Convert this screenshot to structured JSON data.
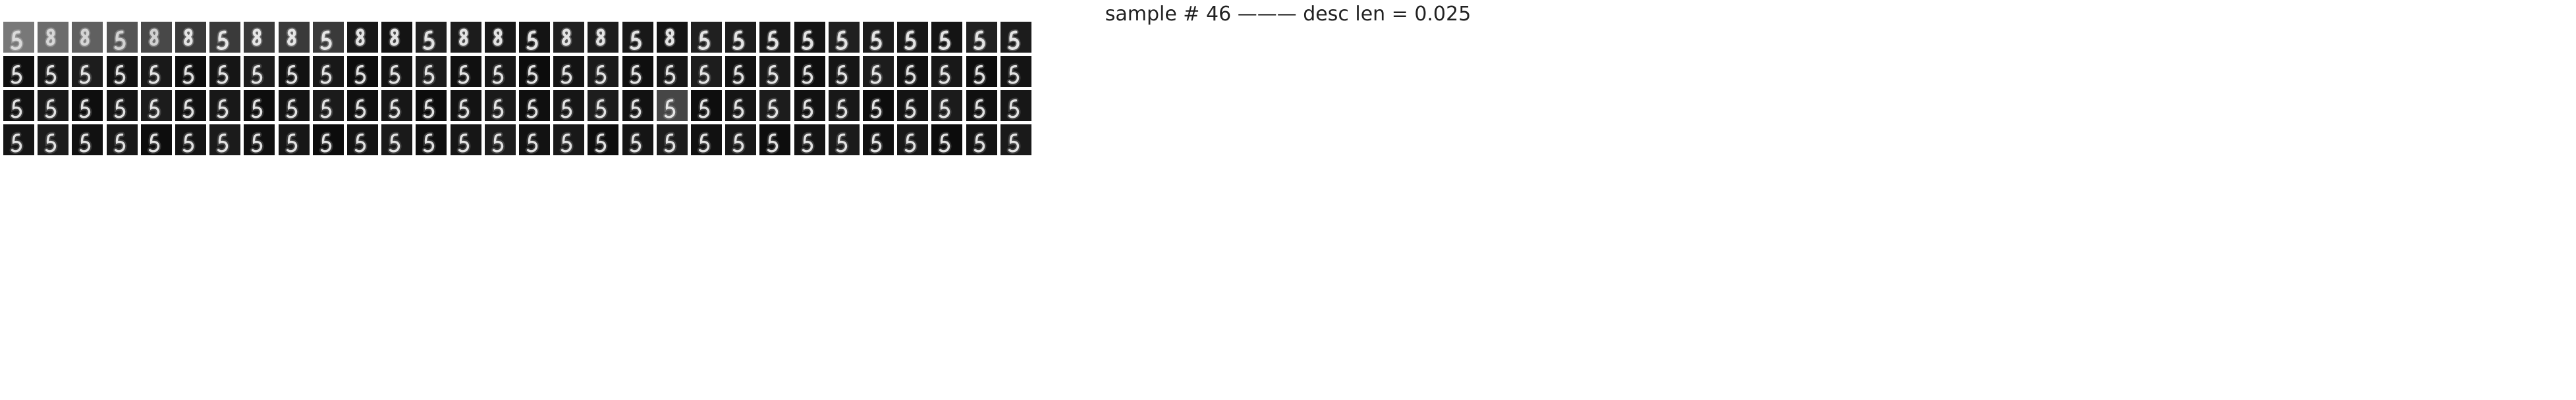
{
  "figure": {
    "title": "sample # 46 ——— desc len = 0.025",
    "rows": 4,
    "cols": 30,
    "tile_background": "#101010",
    "stroke_color": "#f0f0f0"
  },
  "samples": [
    {
      "row": 1,
      "digit_shown": "noisy 8/5 blends",
      "brightness": "gray"
    },
    {
      "row": 2,
      "digit_shown": "5",
      "brightness": "dark"
    },
    {
      "row": 3,
      "digit_shown": "5",
      "brightness": "dark"
    },
    {
      "row": 4,
      "digit_shown": "5",
      "brightness": "dark"
    }
  ]
}
